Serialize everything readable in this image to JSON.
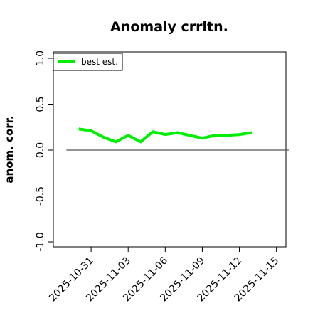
{
  "chart_data": {
    "type": "line",
    "title": "Anomaly crrltn.",
    "xlabel": "",
    "ylabel": "anom. corr.",
    "ylim": [
      -1.0,
      1.0
    ],
    "yticks": [
      -1.0,
      -0.5,
      0.0,
      0.5,
      1.0
    ],
    "ytick_labels": [
      "-1.0",
      "-0.5",
      "0.0",
      "0.5",
      "1.0"
    ],
    "xlim": [
      "2025-10-28",
      "2025-11-16"
    ],
    "xticks": [
      "2025-10-31",
      "2025-11-03",
      "2025-11-06",
      "2025-11-09",
      "2025-11-12",
      "2025-11-15"
    ],
    "grid": false,
    "legend_position": "top-left",
    "reference_line": {
      "y": 0.0,
      "from": "2025-10-29",
      "to": "2025-11-16",
      "color": "#555555"
    },
    "series": [
      {
        "name": "best est.",
        "color": "#00ee00",
        "x": [
          "2025-10-30",
          "2025-10-31",
          "2025-11-01",
          "2025-11-02",
          "2025-11-03",
          "2025-11-04",
          "2025-11-05",
          "2025-11-06",
          "2025-11-07",
          "2025-11-08",
          "2025-11-09",
          "2025-11-10",
          "2025-11-11",
          "2025-11-12",
          "2025-11-13"
        ],
        "y": [
          0.23,
          0.21,
          0.14,
          0.09,
          0.16,
          0.09,
          0.2,
          0.17,
          0.19,
          0.16,
          0.13,
          0.16,
          0.16,
          0.17,
          0.19
        ]
      }
    ]
  }
}
